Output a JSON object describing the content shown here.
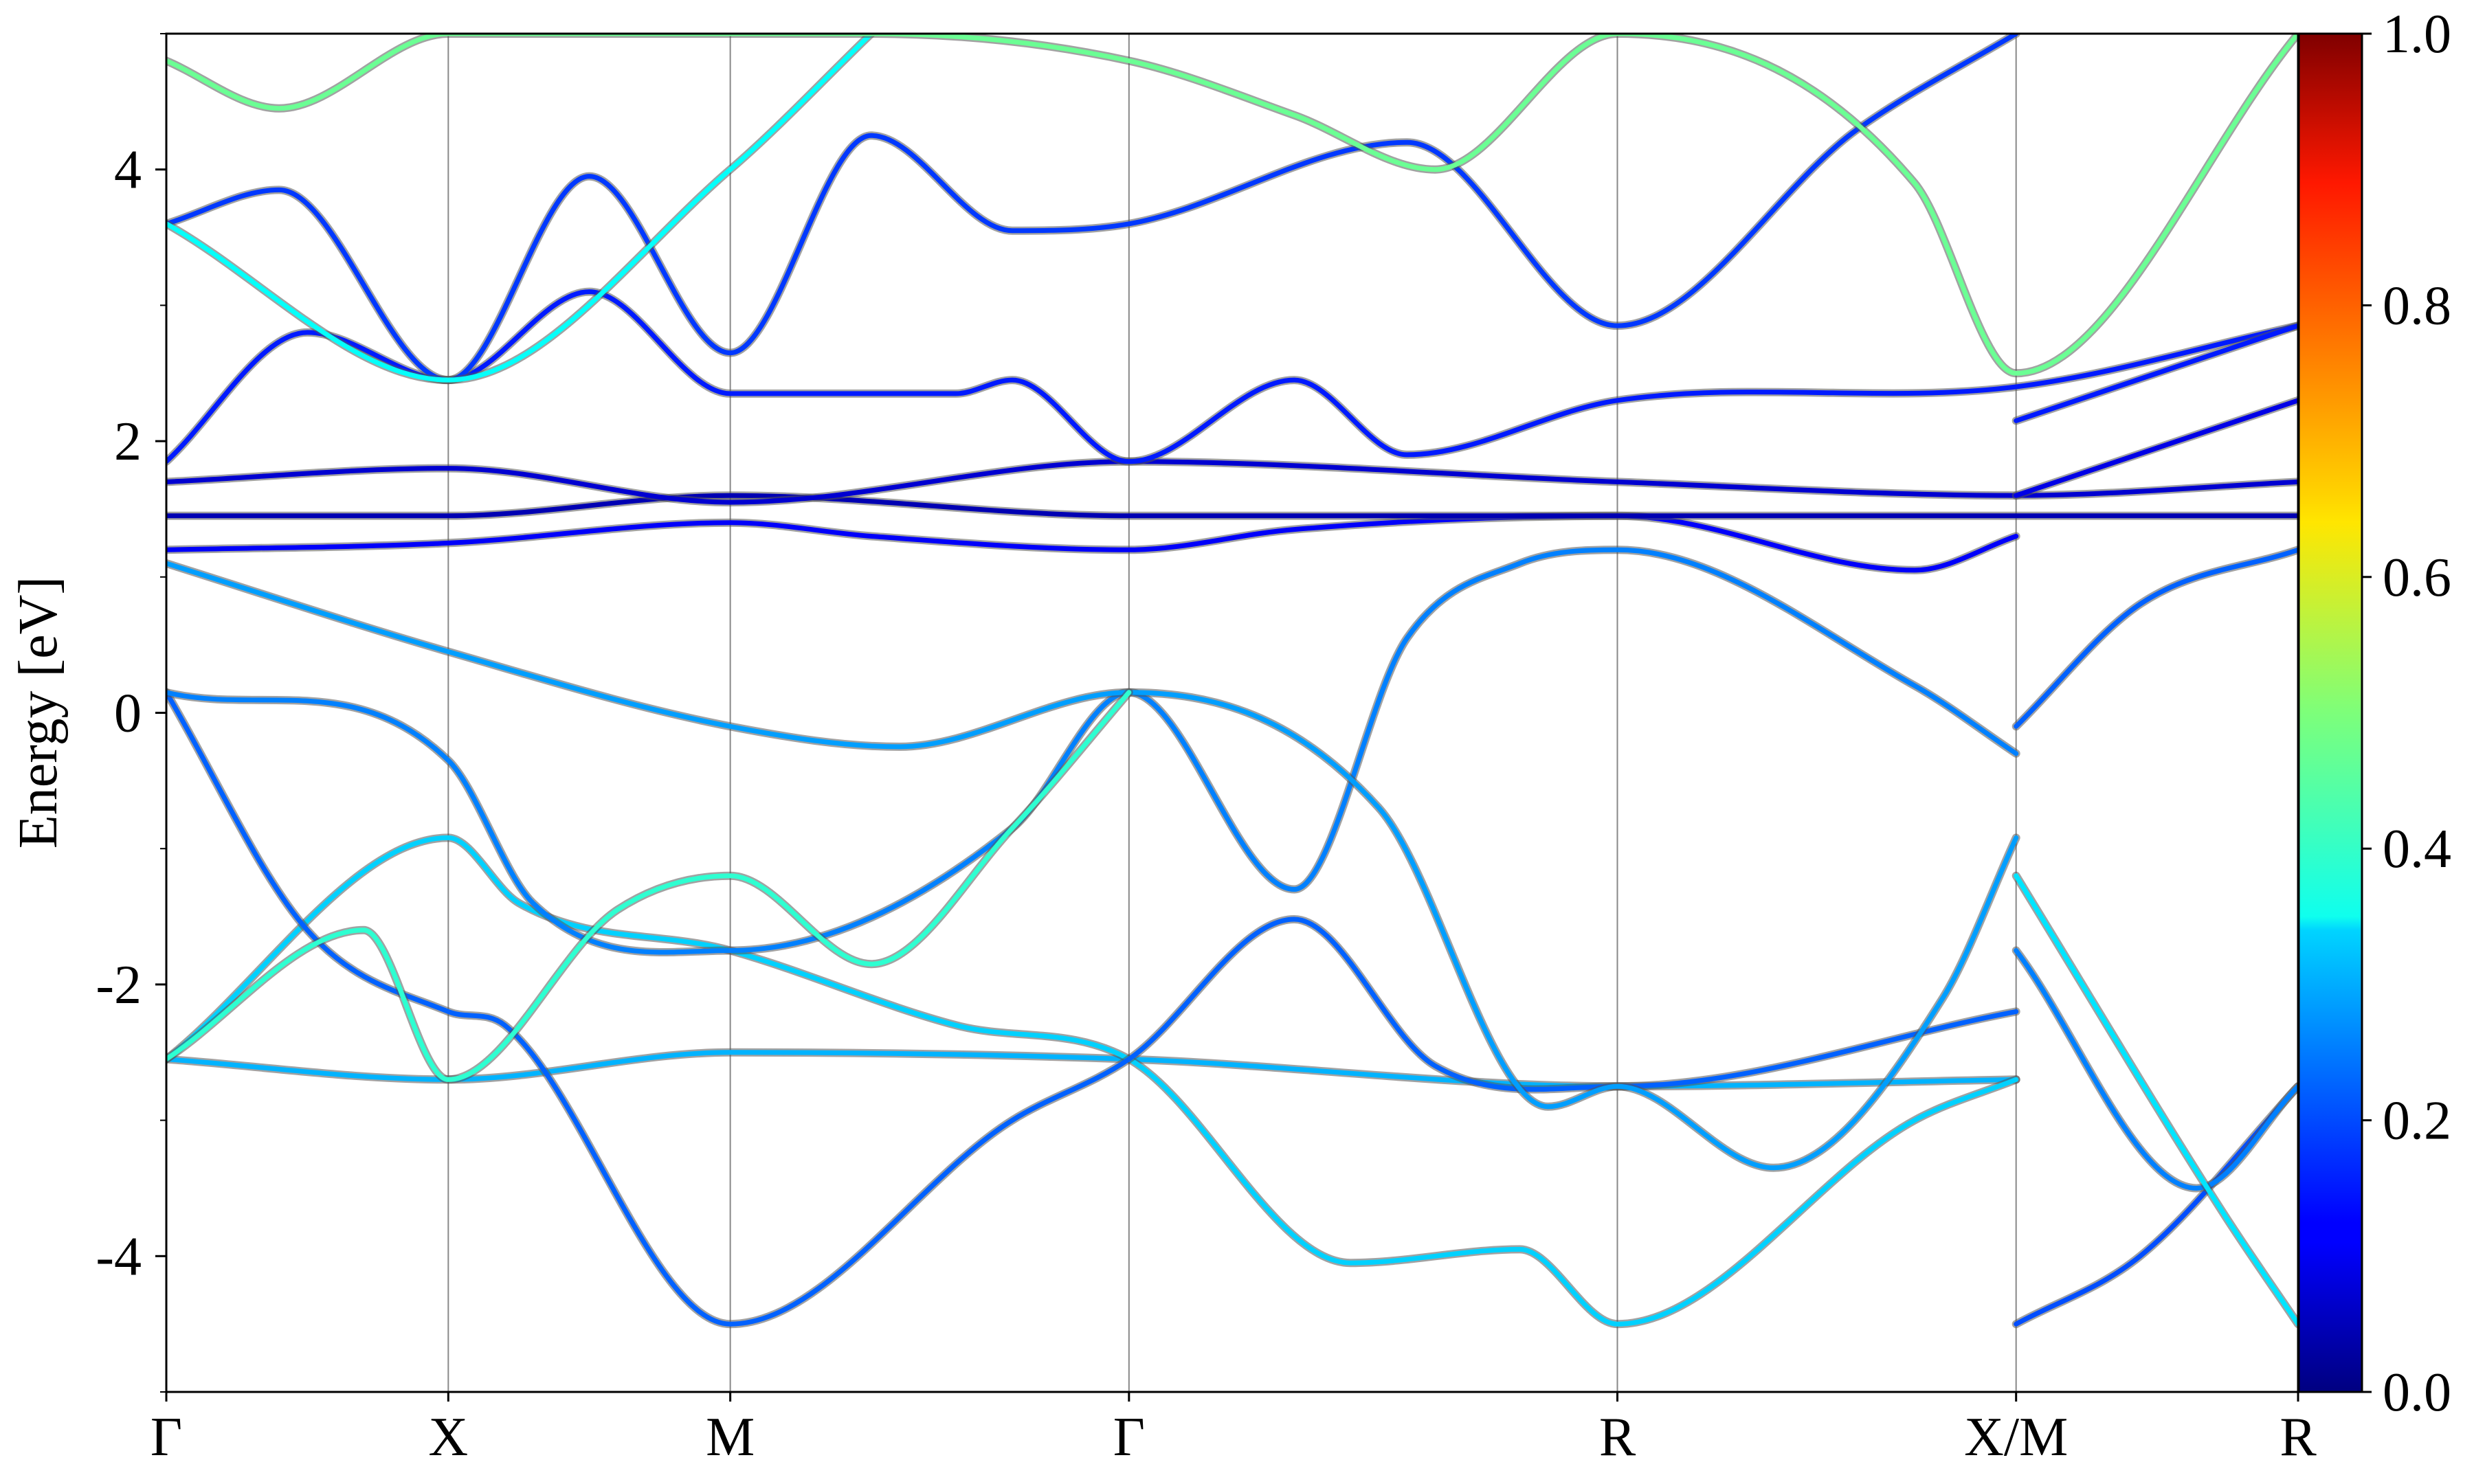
{
  "chart_data": {
    "type": "line",
    "title": "",
    "xlabel": "",
    "ylabel": "Energy [eV]",
    "ylim": [
      -5,
      5
    ],
    "y_ticks": [
      {
        "value": -4,
        "label": "-4"
      },
      {
        "value": -2,
        "label": "-2"
      },
      {
        "value": 0,
        "label": "0"
      },
      {
        "value": 2,
        "label": "2"
      },
      {
        "value": 4,
        "label": "4"
      }
    ],
    "k_path": [
      {
        "k": 0.0,
        "label": "Γ"
      },
      {
        "k": 1.0,
        "label": "X"
      },
      {
        "k": 2.0,
        "label": "M"
      },
      {
        "k": 3.414,
        "label": "Γ"
      },
      {
        "k": 5.146,
        "label": "R"
      },
      {
        "k": 6.56,
        "label": "X/M"
      },
      {
        "k": 7.56,
        "label": "R"
      }
    ],
    "grid": "vertical lines at high-symmetry points",
    "colorbar": {
      "colormap": "jet",
      "range": [
        0.0,
        1.0
      ],
      "ticks": [
        {
          "value": 0.0,
          "label": "0.0"
        },
        {
          "value": 0.2,
          "label": "0.2"
        },
        {
          "value": 0.4,
          "label": "0.4"
        },
        {
          "value": 0.6,
          "label": "0.6"
        },
        {
          "value": 0.8,
          "label": "0.8"
        },
        {
          "value": 1.0,
          "label": "1.0"
        }
      ]
    },
    "series": [
      {
        "c": 0.3,
        "points": [
          [
            0,
            -2.55
          ],
          [
            1.0,
            -2.7
          ],
          [
            2.0,
            -2.5
          ],
          [
            3.414,
            -2.55
          ],
          [
            5.146,
            -2.75
          ],
          [
            6.56,
            -2.7
          ]
        ]
      },
      {
        "c": 0.33,
        "points": [
          [
            0,
            -2.55
          ],
          [
            1.0,
            -0.92
          ],
          [
            1.25,
            -1.4
          ],
          [
            2.0,
            -1.75
          ],
          [
            2.8,
            -2.3
          ],
          [
            3.414,
            -2.55
          ],
          [
            4.2,
            -4.05
          ],
          [
            4.8,
            -3.95
          ],
          [
            5.146,
            -4.5
          ],
          [
            6.2,
            -3.0
          ],
          [
            6.56,
            -2.7
          ]
        ]
      },
      {
        "c": 0.22,
        "points": [
          [
            0,
            0.15
          ],
          [
            0.5,
            -1.6
          ],
          [
            1.0,
            -2.2
          ],
          [
            1.2,
            -2.3
          ],
          [
            2.0,
            -4.5
          ],
          [
            3.0,
            -3.0
          ],
          [
            3.414,
            -2.55
          ],
          [
            4.0,
            -1.52
          ],
          [
            4.5,
            -2.6
          ],
          [
            5.146,
            -2.75
          ],
          [
            6.56,
            -2.2
          ]
        ]
      },
      {
        "c": 0.25,
        "points": [
          [
            0,
            0.15
          ],
          [
            1.0,
            -0.35
          ],
          [
            1.3,
            -1.4
          ],
          [
            2.0,
            -1.75
          ],
          [
            3.0,
            -0.85
          ],
          [
            3.414,
            0.15
          ],
          [
            4.0,
            -1.3
          ],
          [
            4.4,
            0.55
          ],
          [
            4.8,
            1.1
          ],
          [
            5.146,
            1.2
          ],
          [
            6.2,
            0.2
          ],
          [
            6.56,
            -0.3
          ]
        ]
      },
      {
        "c": 0.28,
        "points": [
          [
            0,
            1.1
          ],
          [
            1.0,
            0.45
          ],
          [
            2.0,
            -0.1
          ],
          [
            2.6,
            -0.25
          ],
          [
            3.414,
            0.15
          ],
          [
            4.3,
            -0.7
          ],
          [
            4.9,
            -2.9
          ],
          [
            5.146,
            -2.75
          ],
          [
            5.7,
            -3.35
          ],
          [
            6.3,
            -2.1
          ],
          [
            6.56,
            -0.92
          ]
        ]
      },
      {
        "c": 0.42,
        "points": [
          [
            0,
            -2.55
          ],
          [
            0.7,
            -1.6
          ],
          [
            1.0,
            -2.7
          ],
          [
            1.6,
            -1.45
          ],
          [
            2.0,
            -1.2
          ],
          [
            2.5,
            -1.85
          ],
          [
            3.0,
            -0.85
          ],
          [
            3.414,
            0.15
          ]
        ]
      },
      {
        "c": 0.12,
        "points": [
          [
            0,
            1.2
          ],
          [
            1.0,
            1.25
          ],
          [
            2.0,
            1.4
          ],
          [
            2.5,
            1.3
          ],
          [
            3.414,
            1.2
          ],
          [
            4.0,
            1.35
          ],
          [
            5.146,
            1.45
          ],
          [
            6.2,
            1.05
          ],
          [
            6.56,
            1.3
          ]
        ]
      },
      {
        "c": 0.05,
        "points": [
          [
            0,
            1.45
          ],
          [
            1.0,
            1.45
          ],
          [
            2.0,
            1.6
          ],
          [
            3.414,
            1.45
          ],
          [
            5.146,
            1.45
          ],
          [
            6.56,
            1.45
          ],
          [
            7.56,
            1.45
          ]
        ]
      },
      {
        "c": 0.08,
        "points": [
          [
            0,
            1.7
          ],
          [
            1.0,
            1.8
          ],
          [
            2.0,
            1.55
          ],
          [
            3.414,
            1.85
          ],
          [
            5.146,
            1.7
          ],
          [
            6.56,
            1.6
          ],
          [
            7.56,
            1.7
          ]
        ]
      },
      {
        "c": 0.15,
        "points": [
          [
            0,
            1.85
          ],
          [
            0.5,
            2.8
          ],
          [
            1.0,
            2.45
          ],
          [
            1.5,
            3.1
          ],
          [
            2.0,
            2.35
          ],
          [
            2.8,
            2.35
          ],
          [
            3.0,
            2.45
          ],
          [
            3.414,
            1.85
          ],
          [
            4.0,
            2.45
          ],
          [
            4.4,
            1.9
          ],
          [
            5.146,
            2.3
          ],
          [
            6.56,
            2.4
          ],
          [
            7.56,
            2.85
          ]
        ]
      },
      {
        "c": 0.18,
        "points": [
          [
            0,
            3.6
          ],
          [
            0.4,
            3.85
          ],
          [
            1.0,
            2.45
          ],
          [
            1.5,
            3.95
          ],
          [
            2.0,
            2.65
          ],
          [
            2.5,
            4.25
          ],
          [
            3.0,
            3.55
          ],
          [
            3.414,
            3.6
          ],
          [
            4.4,
            4.2
          ],
          [
            5.146,
            2.85
          ],
          [
            6.0,
            4.3
          ],
          [
            6.56,
            5.0
          ]
        ]
      },
      {
        "c": 0.38,
        "points": [
          [
            0,
            3.6
          ],
          [
            1.0,
            2.45
          ],
          [
            2.0,
            4.0
          ],
          [
            2.5,
            5.0
          ]
        ]
      },
      {
        "c": 0.48,
        "points": [
          [
            0,
            4.8
          ],
          [
            0.4,
            4.45
          ],
          [
            1.0,
            5.0
          ],
          [
            2.5,
            5.0
          ],
          [
            3.414,
            4.8
          ],
          [
            4.0,
            4.4
          ],
          [
            4.5,
            4.0
          ],
          [
            5.146,
            5.0
          ],
          [
            6.2,
            3.9
          ],
          [
            6.56,
            2.5
          ],
          [
            7.56,
            5.0
          ]
        ]
      },
      {
        "c": 0.2,
        "points": [
          [
            6.56,
            -4.5
          ],
          [
            7.0,
            -4.0
          ],
          [
            7.56,
            -2.75
          ]
        ]
      },
      {
        "c": 0.25,
        "points": [
          [
            6.56,
            -1.75
          ],
          [
            7.2,
            -3.5
          ],
          [
            7.56,
            -2.75
          ]
        ]
      },
      {
        "c": 0.35,
        "points": [
          [
            6.56,
            -1.2
          ],
          [
            7.3,
            -3.7
          ],
          [
            7.56,
            -4.5
          ]
        ]
      },
      {
        "c": 0.22,
        "points": [
          [
            6.56,
            -0.1
          ],
          [
            7.0,
            0.8
          ],
          [
            7.56,
            1.2
          ]
        ]
      },
      {
        "c": 0.15,
        "points": [
          [
            6.56,
            2.15
          ],
          [
            7.56,
            2.85
          ]
        ]
      },
      {
        "c": 0.1,
        "points": [
          [
            6.56,
            1.6
          ],
          [
            7.56,
            2.3
          ]
        ]
      }
    ]
  }
}
